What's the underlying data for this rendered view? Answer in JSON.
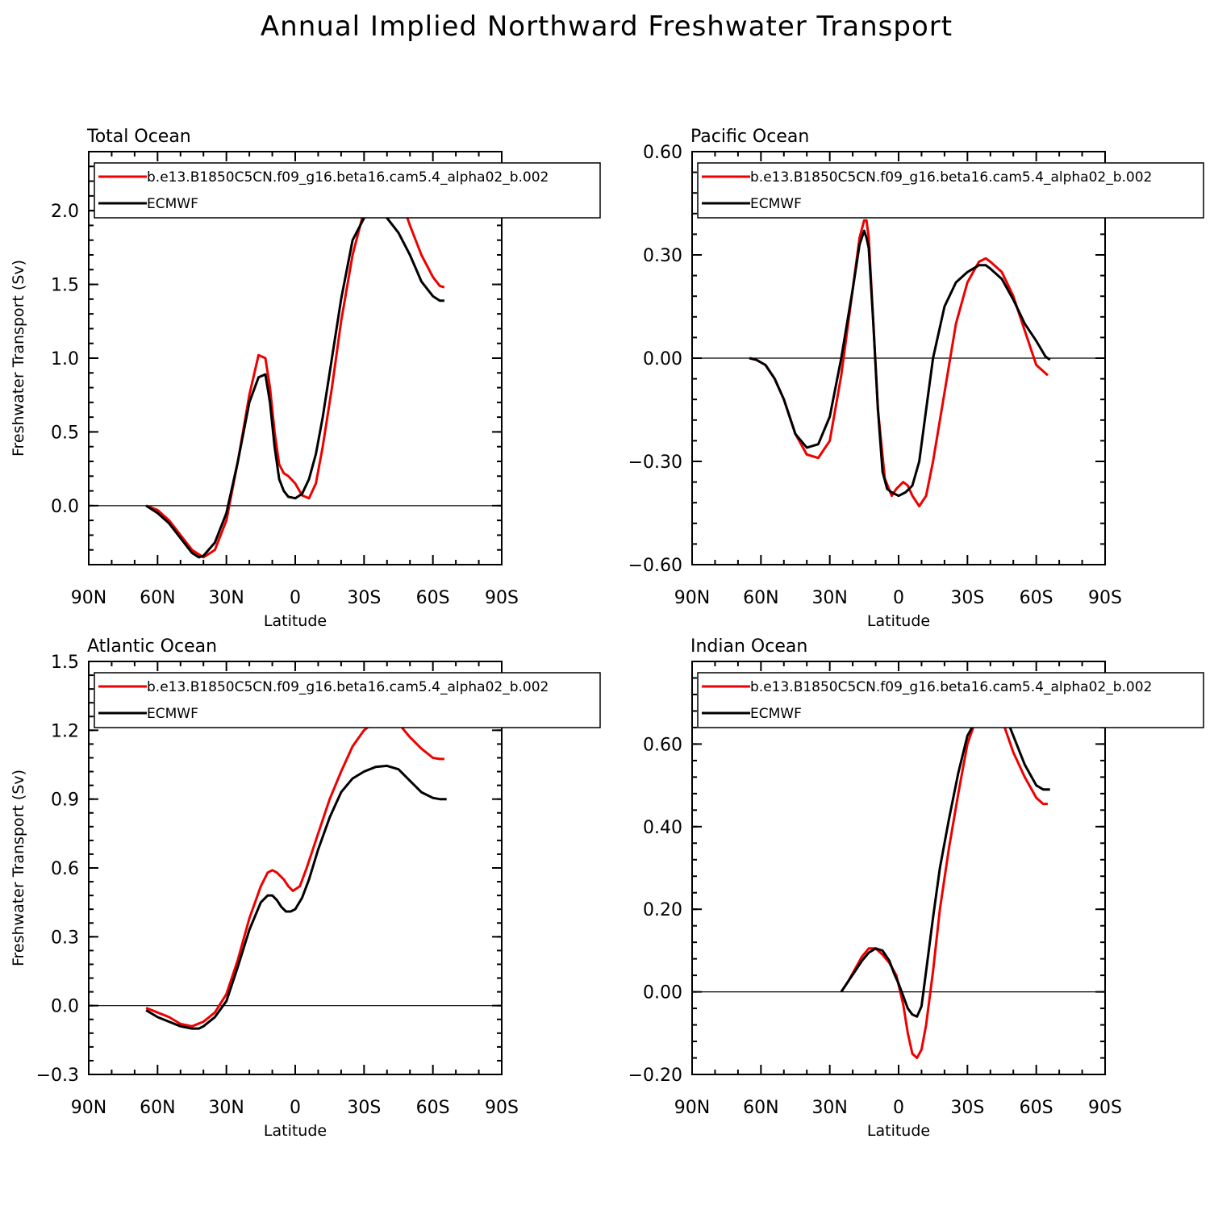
{
  "title": "Annual Implied Northward Freshwater Transport",
  "colors": {
    "model": "#ee0000",
    "obs": "#000000"
  },
  "legend": [
    "b.e13.B1850C5CN.f09_g16.beta16.cam5.4_alpha02_b.002",
    "ECMWF"
  ],
  "chart_data": [
    {
      "type": "line",
      "title": "Total Ocean",
      "xlabel": "Latitude",
      "ylabel": "Freshwater Transport (Sv)",
      "xlim": [
        90,
        -90
      ],
      "ylim": [
        -0.4,
        2.4
      ],
      "xticks": [
        90,
        60,
        30,
        0,
        -30,
        -60,
        -90
      ],
      "xticklabels": [
        "90N",
        "60N",
        "30N",
        "0",
        "30S",
        "60S",
        "90S"
      ],
      "yticks": [
        0.0,
        0.5,
        1.0,
        1.5,
        2.0
      ],
      "yticklabels": [
        "0.0",
        "0.5",
        "1.0",
        "1.5",
        "2.0"
      ],
      "legend_position": "top",
      "series": [
        {
          "name": "b.e13.B1850C5CN.f09_g16.beta16.cam5.4_alpha02_b.002",
          "color": "#ee0000",
          "x": [
            65,
            60,
            55,
            50,
            45,
            40,
            35,
            30,
            25,
            20,
            16,
            13,
            11,
            9,
            7,
            5,
            3,
            0,
            -3,
            -6,
            -9,
            -12,
            -16,
            -20,
            -25,
            -30,
            -35,
            -40,
            -45,
            -50,
            -55,
            -60,
            -63,
            -65
          ],
          "y": [
            0.0,
            -0.03,
            -0.1,
            -0.2,
            -0.3,
            -0.35,
            -0.3,
            -0.1,
            0.3,
            0.75,
            1.02,
            1.0,
            0.8,
            0.5,
            0.28,
            0.22,
            0.2,
            0.15,
            0.07,
            0.05,
            0.15,
            0.4,
            0.8,
            1.25,
            1.7,
            2.0,
            2.2,
            2.25,
            2.12,
            1.9,
            1.7,
            1.55,
            1.49,
            1.48
          ]
        },
        {
          "name": "ECMWF",
          "color": "#000000",
          "x": [
            65,
            60,
            55,
            50,
            45,
            42,
            40,
            35,
            30,
            25,
            20,
            16,
            13,
            11,
            9,
            7,
            5,
            3,
            0,
            -3,
            -6,
            -9,
            -12,
            -16,
            -20,
            -25,
            -30,
            -35,
            -40,
            -45,
            -50,
            -55,
            -60,
            -63,
            -65
          ],
          "y": [
            0.0,
            -0.05,
            -0.12,
            -0.22,
            -0.32,
            -0.35,
            -0.34,
            -0.25,
            -0.05,
            0.3,
            0.7,
            0.87,
            0.89,
            0.7,
            0.4,
            0.18,
            0.1,
            0.06,
            0.05,
            0.08,
            0.18,
            0.35,
            0.6,
            1.0,
            1.4,
            1.8,
            1.95,
            2.0,
            1.95,
            1.85,
            1.7,
            1.52,
            1.42,
            1.39,
            1.39
          ]
        }
      ]
    },
    {
      "type": "line",
      "title": "Pacific Ocean",
      "xlabel": "Latitude",
      "ylabel": "",
      "xlim": [
        90,
        -90
      ],
      "ylim": [
        -0.6,
        0.6
      ],
      "xticks": [
        90,
        60,
        30,
        0,
        -30,
        -60,
        -90
      ],
      "xticklabels": [
        "90N",
        "60N",
        "30N",
        "0",
        "30S",
        "60S",
        "90S"
      ],
      "yticks": [
        -0.6,
        -0.3,
        0.0,
        0.3,
        0.6
      ],
      "yticklabels": [
        "−0.60",
        "−0.30",
        "0.00",
        "0.30",
        "0.60"
      ],
      "legend_position": "top",
      "series": [
        {
          "name": "b.e13.B1850C5CN.f09_g16.beta16.cam5.4_alpha02_b.002",
          "color": "#ee0000",
          "x": [
            65,
            62,
            58,
            54,
            50,
            45,
            40,
            35,
            30,
            25,
            20,
            17,
            15,
            14,
            13,
            11,
            9,
            6,
            3,
            1,
            -2,
            -4,
            -6,
            -9,
            -12,
            -15,
            -20,
            -25,
            -30,
            -35,
            -38,
            -40,
            -45,
            -50,
            -55,
            -60,
            -65
          ],
          "y": [
            0.0,
            -0.005,
            -0.02,
            -0.06,
            -0.12,
            -0.22,
            -0.28,
            -0.29,
            -0.24,
            -0.05,
            0.2,
            0.35,
            0.4,
            0.4,
            0.35,
            0.1,
            -0.15,
            -0.35,
            -0.4,
            -0.38,
            -0.36,
            -0.37,
            -0.4,
            -0.43,
            -0.4,
            -0.3,
            -0.1,
            0.1,
            0.22,
            0.28,
            0.29,
            0.28,
            0.25,
            0.18,
            0.08,
            -0.02,
            -0.05
          ]
        },
        {
          "name": "ECMWF",
          "color": "#000000",
          "x": [
            65,
            62,
            58,
            54,
            50,
            45,
            40,
            35,
            30,
            25,
            20,
            17,
            15,
            14,
            13,
            11,
            9,
            7,
            5,
            3,
            0,
            -3,
            -6,
            -9,
            -12,
            -15,
            -20,
            -25,
            -30,
            -35,
            -38,
            -40,
            -45,
            -50,
            -55,
            -60,
            -64,
            -66
          ],
          "y": [
            0.0,
            -0.005,
            -0.02,
            -0.06,
            -0.12,
            -0.22,
            -0.26,
            -0.25,
            -0.17,
            0.0,
            0.2,
            0.33,
            0.37,
            0.35,
            0.32,
            0.1,
            -0.15,
            -0.33,
            -0.38,
            -0.39,
            -0.4,
            -0.39,
            -0.37,
            -0.3,
            -0.15,
            0.0,
            0.15,
            0.22,
            0.25,
            0.27,
            0.27,
            0.26,
            0.23,
            0.17,
            0.1,
            0.05,
            0.005,
            -0.005
          ]
        }
      ]
    },
    {
      "type": "line",
      "title": "Atlantic Ocean",
      "xlabel": "Latitude",
      "ylabel": "Freshwater Transport (Sv)",
      "xlim": [
        90,
        -90
      ],
      "ylim": [
        -0.3,
        1.5
      ],
      "xticks": [
        90,
        60,
        30,
        0,
        -30,
        -60,
        -90
      ],
      "xticklabels": [
        "90N",
        "60N",
        "30N",
        "0",
        "30S",
        "60S",
        "90S"
      ],
      "yticks": [
        -0.3,
        0.0,
        0.3,
        0.6,
        0.9,
        1.2,
        1.5
      ],
      "yticklabels": [
        "−0.3",
        "0.0",
        "0.3",
        "0.6",
        "0.9",
        "1.2",
        "1.5"
      ],
      "legend_position": "top",
      "series": [
        {
          "name": "b.e13.B1850C5CN.f09_g16.beta16.cam5.4_alpha02_b.002",
          "color": "#ee0000",
          "x": [
            65,
            60,
            55,
            50,
            45,
            40,
            35,
            30,
            25,
            20,
            15,
            12,
            10,
            8,
            5,
            3,
            1,
            -2,
            -5,
            -10,
            -15,
            -20,
            -25,
            -30,
            -35,
            -40,
            -45,
            -50,
            -55,
            -60,
            -63,
            -65
          ],
          "y": [
            -0.01,
            -0.03,
            -0.05,
            -0.08,
            -0.09,
            -0.07,
            -0.03,
            0.05,
            0.2,
            0.38,
            0.52,
            0.58,
            0.59,
            0.58,
            0.55,
            0.52,
            0.5,
            0.52,
            0.6,
            0.75,
            0.9,
            1.02,
            1.13,
            1.2,
            1.24,
            1.26,
            1.23,
            1.17,
            1.12,
            1.08,
            1.075,
            1.075
          ]
        },
        {
          "name": "ECMWF",
          "color": "#000000",
          "x": [
            65,
            60,
            55,
            50,
            45,
            42,
            40,
            35,
            30,
            25,
            20,
            15,
            12,
            10,
            8,
            6,
            4,
            2,
            0,
            -3,
            -6,
            -10,
            -15,
            -20,
            -25,
            -30,
            -35,
            -40,
            -45,
            -50,
            -55,
            -60,
            -63,
            -66
          ],
          "y": [
            -0.02,
            -0.05,
            -0.07,
            -0.09,
            -0.1,
            -0.1,
            -0.09,
            -0.05,
            0.02,
            0.17,
            0.33,
            0.45,
            0.48,
            0.48,
            0.46,
            0.43,
            0.41,
            0.41,
            0.42,
            0.47,
            0.55,
            0.68,
            0.82,
            0.93,
            0.99,
            1.02,
            1.04,
            1.045,
            1.03,
            0.98,
            0.93,
            0.905,
            0.9,
            0.9
          ]
        }
      ]
    },
    {
      "type": "line",
      "title": "Indian Ocean",
      "xlabel": "Latitude",
      "ylabel": "",
      "xlim": [
        90,
        -90
      ],
      "ylim": [
        -0.2,
        0.8
      ],
      "xticks": [
        90,
        60,
        30,
        0,
        -30,
        -60,
        -90
      ],
      "xticklabels": [
        "90N",
        "60N",
        "30N",
        "0",
        "30S",
        "60S",
        "90S"
      ],
      "yticks": [
        -0.2,
        0.0,
        0.2,
        0.4,
        0.6
      ],
      "yticklabels": [
        "−0.20",
        "0.00",
        "0.20",
        "0.40",
        "0.60"
      ],
      "legend_position": "top",
      "series": [
        {
          "name": "b.e13.B1850C5CN.f09_g16.beta16.cam5.4_alpha02_b.002",
          "color": "#ee0000",
          "x": [
            25,
            22,
            19,
            16,
            13,
            10,
            7,
            4,
            1,
            -2,
            -4,
            -6,
            -8,
            -10,
            -12,
            -15,
            -18,
            -22,
            -26,
            -30,
            -35,
            -40,
            -43,
            -45,
            -50,
            -55,
            -60,
            -63,
            -65
          ],
          "y": [
            0.0,
            0.025,
            0.055,
            0.085,
            0.105,
            0.105,
            0.09,
            0.07,
            0.04,
            -0.03,
            -0.1,
            -0.15,
            -0.16,
            -0.14,
            -0.08,
            0.05,
            0.2,
            0.35,
            0.48,
            0.6,
            0.68,
            0.7,
            0.69,
            0.66,
            0.58,
            0.52,
            0.47,
            0.455,
            0.455
          ]
        },
        {
          "name": "ECMWF",
          "color": "#000000",
          "x": [
            25,
            22,
            19,
            16,
            13,
            10,
            7,
            4,
            2,
            0,
            -2,
            -4,
            -6,
            -8,
            -10,
            -12,
            -15,
            -18,
            -22,
            -26,
            -30,
            -35,
            -40,
            -42,
            -45,
            -50,
            -55,
            -60,
            -63,
            -66
          ],
          "y": [
            0.0,
            0.025,
            0.05,
            0.075,
            0.095,
            0.105,
            0.1,
            0.075,
            0.045,
            0.02,
            -0.01,
            -0.04,
            -0.055,
            -0.06,
            -0.035,
            0.05,
            0.18,
            0.3,
            0.42,
            0.53,
            0.62,
            0.67,
            0.7,
            0.705,
            0.69,
            0.62,
            0.55,
            0.5,
            0.49,
            0.49
          ]
        }
      ]
    }
  ]
}
